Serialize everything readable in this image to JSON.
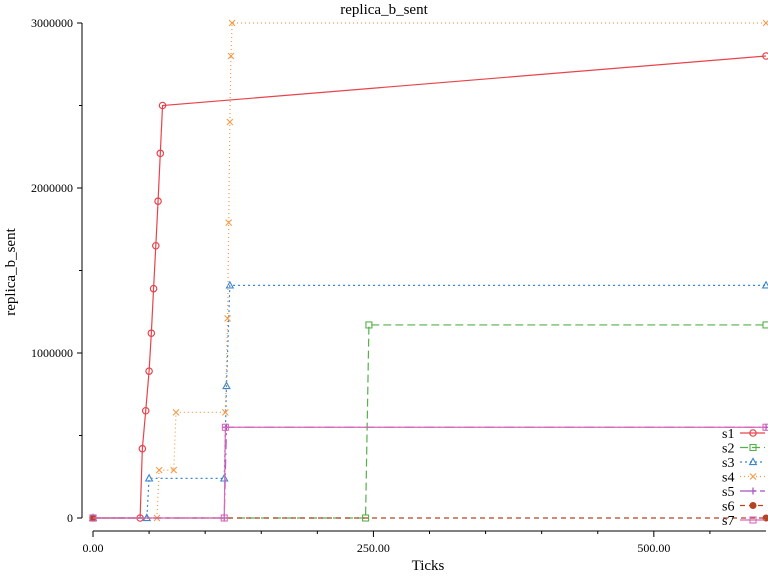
{
  "chart_data": {
    "type": "line",
    "title": "replica_b_sent",
    "xlabel": "Ticks",
    "ylabel": "replica_b_sent",
    "xlim": [
      0,
      600
    ],
    "ylim": [
      0,
      3000000
    ],
    "x_ticks": [
      0,
      250,
      500
    ],
    "x_tick_labels": [
      "0.00",
      "250.00",
      "500.00"
    ],
    "y_ticks": [
      0,
      1000000,
      2000000,
      3000000
    ],
    "y_tick_labels": [
      "0",
      "1000000",
      "2000000",
      "3000000"
    ],
    "grid": false,
    "legend_position": "bottom-right",
    "series": [
      {
        "name": "s1",
        "color": "#e8434b",
        "dash": "",
        "marker": "circle",
        "x": [
          0,
          42,
          44,
          47,
          50,
          52,
          54,
          56,
          58,
          60,
          62,
          600
        ],
        "y": [
          0,
          0,
          420000,
          650000,
          890000,
          1120000,
          1390000,
          1650000,
          1920000,
          2210000,
          2500000,
          2800000
        ]
      },
      {
        "name": "s2",
        "color": "#55b04b",
        "dash": "8,4",
        "marker": "square",
        "x": [
          0,
          243,
          246,
          600
        ],
        "y": [
          0,
          0,
          1170000,
          1170000
        ]
      },
      {
        "name": "s3",
        "color": "#3b86d0",
        "dash": "2,3",
        "marker": "triangle",
        "x": [
          0,
          48,
          50,
          117,
          119,
          122,
          600
        ],
        "y": [
          0,
          0,
          240000,
          240000,
          800000,
          1410000,
          1410000
        ]
      },
      {
        "name": "s4",
        "color": "#f79a48",
        "dash": "1,3",
        "marker": "x",
        "x": [
          0,
          57,
          59,
          72,
          74,
          118,
          120,
          121,
          122,
          123,
          124,
          600
        ],
        "y": [
          0,
          0,
          290000,
          290000,
          640000,
          640000,
          1210000,
          1790000,
          2400000,
          2800000,
          3000000,
          3000000
        ]
      },
      {
        "name": "s5",
        "color": "#a64fc2",
        "dash": "10,4,2,4",
        "marker": "plus",
        "x": [
          0,
          117,
          119,
          600
        ],
        "y": [
          0,
          0,
          550000,
          550000
        ]
      },
      {
        "name": "s6",
        "color": "#b54424",
        "dash": "5,4",
        "marker": "dot",
        "x": [
          0,
          600
        ],
        "y": [
          0,
          0
        ]
      },
      {
        "name": "s7",
        "color": "#d868b8",
        "dash": "",
        "marker": "square",
        "x": [
          0,
          117,
          118,
          600
        ],
        "y": [
          0,
          0,
          550000,
          550000
        ]
      }
    ]
  }
}
